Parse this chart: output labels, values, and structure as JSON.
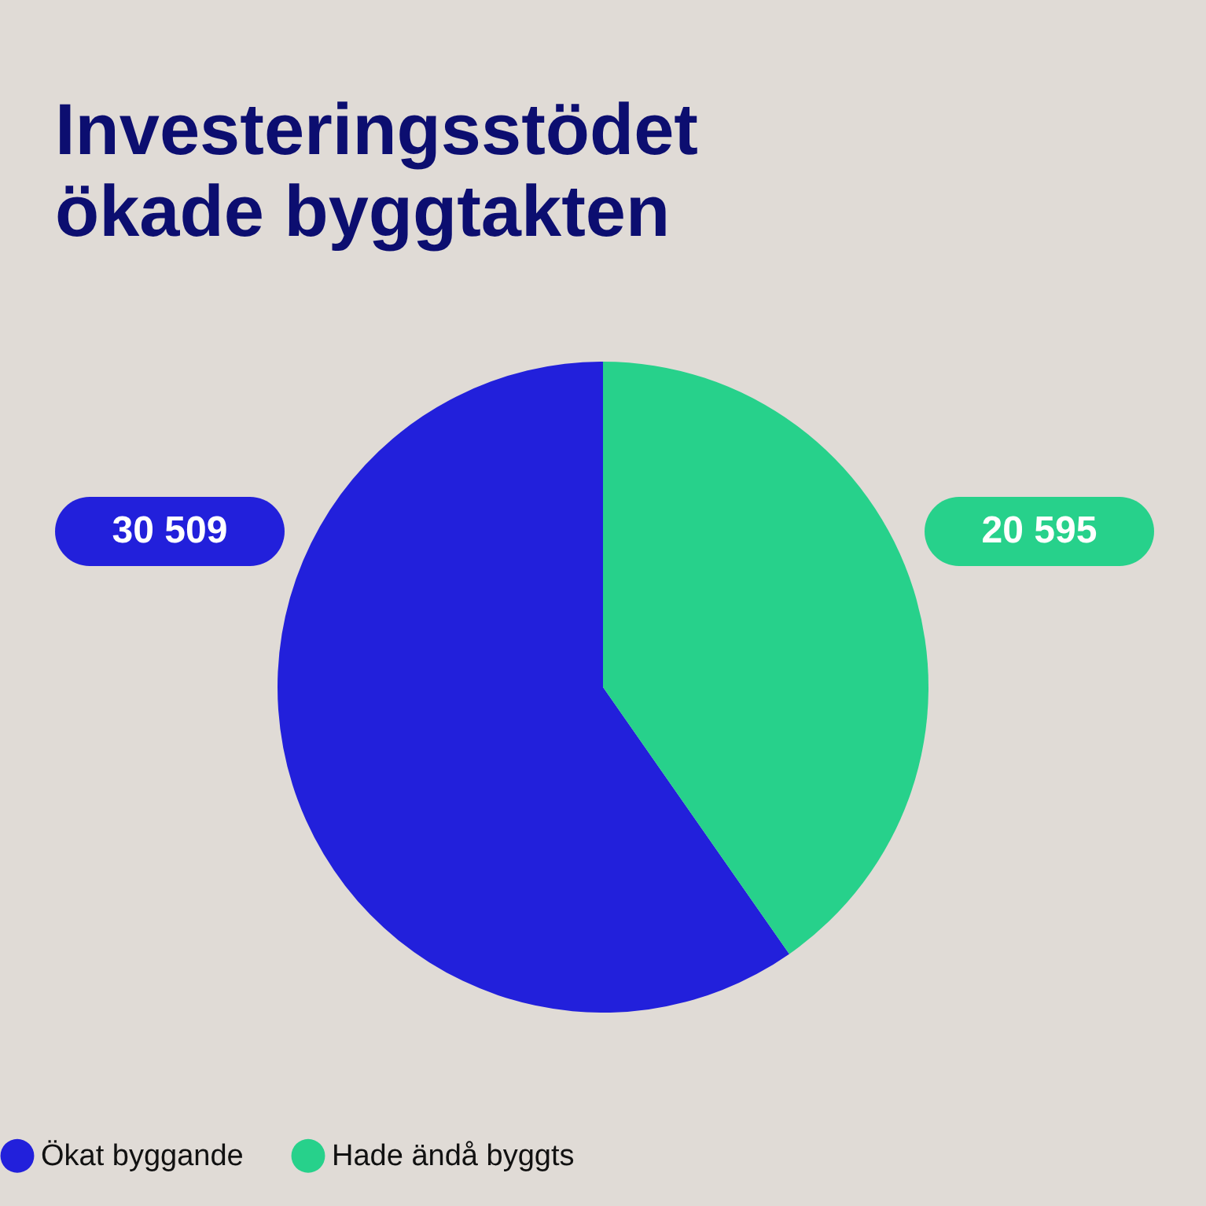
{
  "chart_data": {
    "type": "pie",
    "title": "Investeringsstödet ökade byggtakten",
    "categories": [
      "Ökat byggande",
      "Hade ändå byggts"
    ],
    "values": [
      30509,
      20595
    ],
    "colors": [
      "#2220db",
      "#27d18b"
    ],
    "value_labels": [
      "30 509",
      "20 595"
    ],
    "legend": "bottom"
  }
}
